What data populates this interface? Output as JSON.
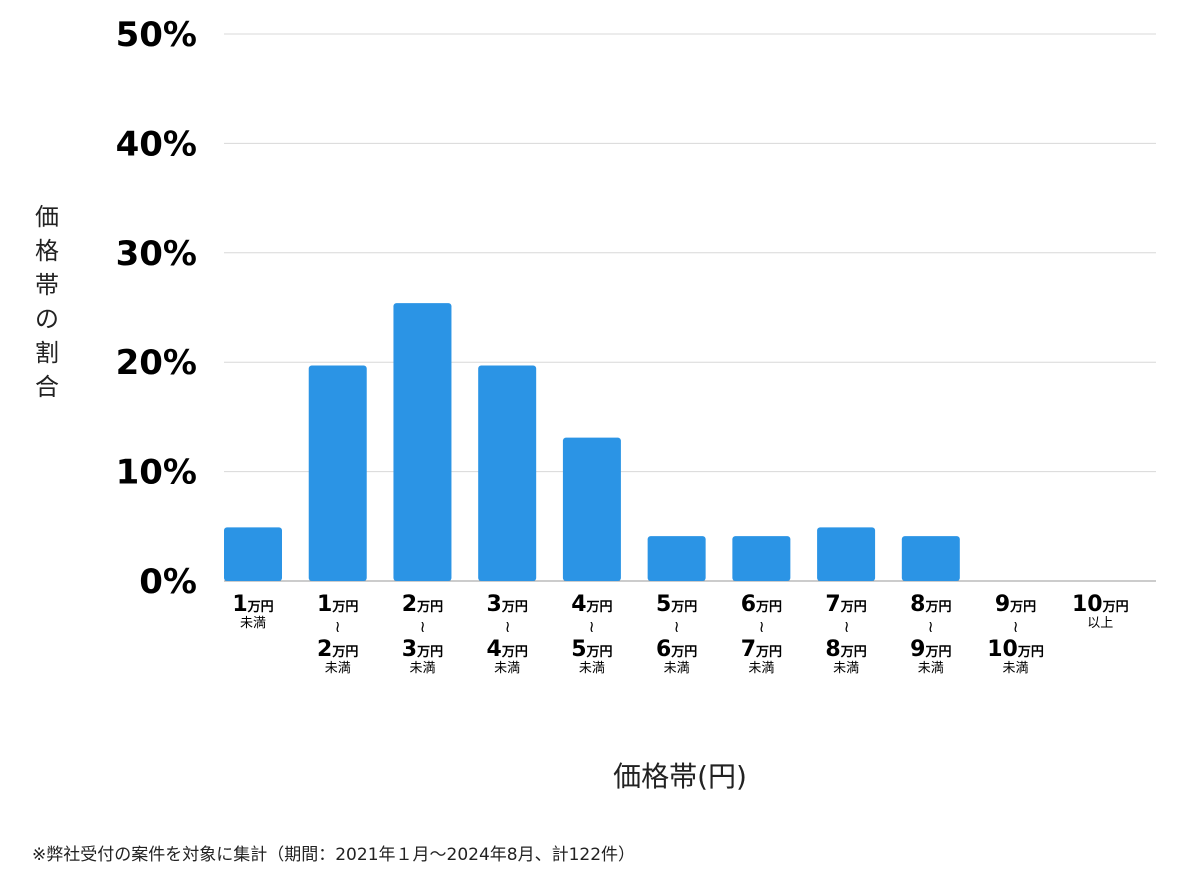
{
  "chart_data": {
    "type": "bar",
    "categories": [
      [
        "1万円",
        "未満"
      ],
      [
        "1万円",
        "〜",
        "2万円",
        "未満"
      ],
      [
        "2万円",
        "〜",
        "3万円",
        "未満"
      ],
      [
        "3万円",
        "〜",
        "4万円",
        "未満"
      ],
      [
        "4万円",
        "〜",
        "5万円",
        "未満"
      ],
      [
        "5万円",
        "〜",
        "6万円",
        "未満"
      ],
      [
        "6万円",
        "〜",
        "7万円",
        "未満"
      ],
      [
        "7万円",
        "〜",
        "8万円",
        "未満"
      ],
      [
        "8万円",
        "〜",
        "9万円",
        "未満"
      ],
      [
        "9万円",
        "〜",
        "10万円",
        "未満"
      ],
      [
        "10万円",
        "以上"
      ]
    ],
    "values": [
      4.9,
      19.7,
      25.4,
      19.7,
      13.1,
      4.1,
      4.1,
      4.9,
      4.1,
      0,
      0
    ],
    "ylim": [
      0,
      50
    ],
    "yticks": [
      "0%",
      "10%",
      "20%",
      "30%",
      "40%",
      "50%"
    ],
    "ylabel": "価格帯の割合",
    "xlabel": "価格帯(円)",
    "grid": true,
    "bar_color": "#2b94e5"
  },
  "footnote": "※弊社受付の案件を対象に集計（期間：2021年１月〜2024年8月、計122件）"
}
